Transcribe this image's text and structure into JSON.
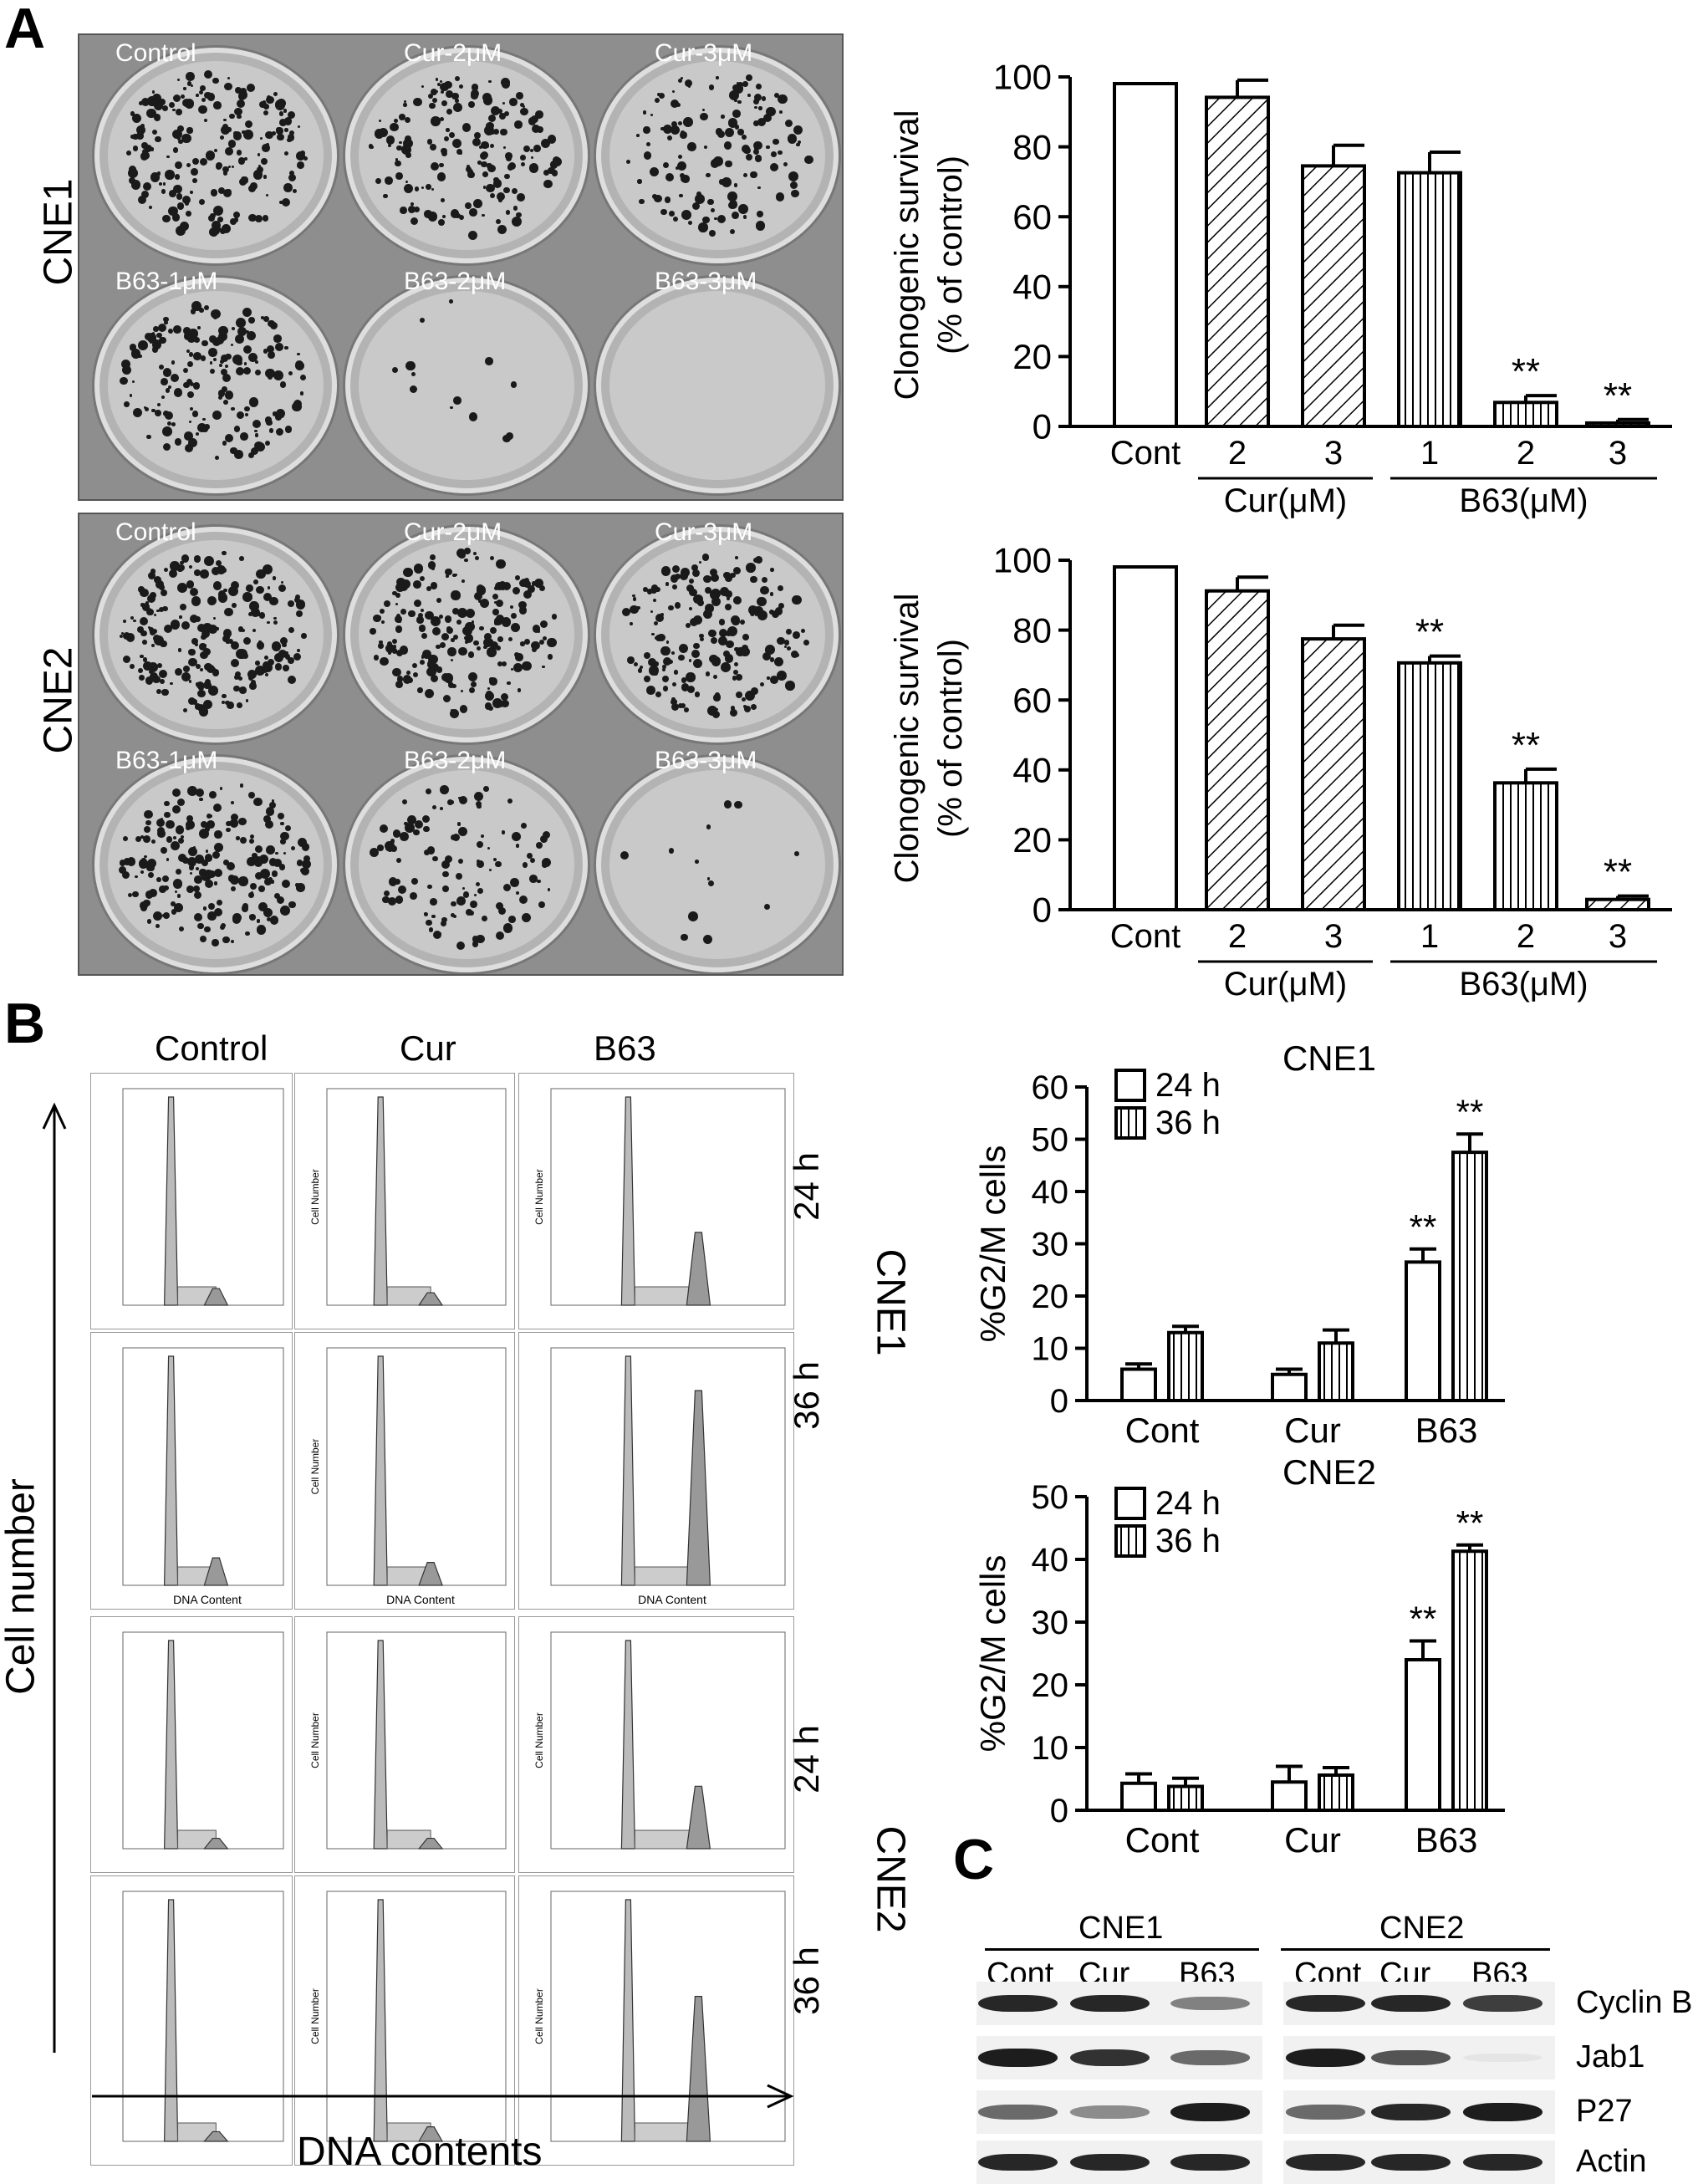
{
  "panel_letters": {
    "a": "A",
    "b": "B",
    "c": "C"
  },
  "panel_a": {
    "plates": [
      {
        "cell_line": "CNE1",
        "wells": [
          "Control",
          "Cur-2μM",
          "Cur-3μM",
          "B63-1μM",
          "B63-2μM",
          "B63-3μM"
        ],
        "colony_density": [
          0.8,
          0.7,
          0.55,
          0.7,
          0.05,
          0.0
        ]
      },
      {
        "cell_line": "CNE2",
        "wells": [
          "Control",
          "Cur-2μM",
          "Cur-3μM",
          "B63-1μM",
          "B63-2μM",
          "B63-3μM"
        ],
        "colony_density": [
          0.85,
          0.8,
          0.75,
          0.8,
          0.45,
          0.05
        ]
      }
    ]
  },
  "panel_b": {
    "column_headers": [
      "Control",
      "Cur",
      "B63"
    ],
    "time_labels": [
      "24 h",
      "36 h"
    ],
    "cell_lines": [
      "CNE1",
      "CNE2"
    ],
    "y_axis_label": "Cell number",
    "x_axis_label": "DNA contents",
    "histogram_inner_x_label": "DNA Content",
    "histogram_inner_y_label": "Cell Number"
  },
  "panel_c": {
    "cell_lines": [
      "CNE1",
      "CNE2"
    ],
    "lanes": [
      "Cont",
      "Cur",
      "B63",
      "Cont",
      "Cur",
      "B63"
    ],
    "proteins": [
      "Cyclin B",
      "Jab1",
      "P27",
      "Actin"
    ],
    "band_intensity": [
      [
        0.9,
        0.9,
        0.5,
        0.9,
        0.9,
        0.8
      ],
      [
        0.95,
        0.85,
        0.6,
        0.95,
        0.7,
        0.05
      ],
      [
        0.6,
        0.45,
        0.95,
        0.6,
        0.9,
        0.95
      ],
      [
        0.9,
        0.9,
        0.9,
        0.9,
        0.9,
        0.9
      ]
    ]
  },
  "chart_data": [
    {
      "type": "bar",
      "panel": "A-top",
      "ylabel_line1": "Clonogenic survival",
      "ylabel_line2": "(% of control)",
      "ylim": [
        0,
        100
      ],
      "yticks": [
        "0",
        "20",
        "40",
        "60",
        "80",
        "100"
      ],
      "categories": [
        "Cont",
        "2",
        "3",
        "1",
        "2",
        "3"
      ],
      "groups": [
        {
          "label": "Cur(μM)",
          "indices": [
            1,
            2
          ]
        },
        {
          "label": "B63(μM)",
          "indices": [
            3,
            5
          ]
        }
      ],
      "values": [
        100,
        96,
        76,
        74,
        7,
        1
      ],
      "errors": [
        0,
        5,
        6,
        6,
        2,
        1
      ],
      "patterns": [
        "none",
        "diag",
        "diag",
        "vert",
        "vert",
        "vert"
      ],
      "annotations": [
        "",
        "",
        "",
        "",
        "**",
        "**"
      ]
    },
    {
      "type": "bar",
      "panel": "A-bottom",
      "ylabel_line1": "Clonogenic survival",
      "ylabel_line2": "(% of control)",
      "ylim": [
        0,
        100
      ],
      "yticks": [
        "0",
        "20",
        "40",
        "60",
        "80",
        "100"
      ],
      "categories": [
        "Cont",
        "2",
        "3",
        "1",
        "2",
        "3"
      ],
      "groups": [
        {
          "label": "Cur(μM)",
          "indices": [
            1,
            2
          ]
        },
        {
          "label": "B63(μM)",
          "indices": [
            3,
            5
          ]
        }
      ],
      "values": [
        100,
        93,
        79,
        72,
        37,
        3
      ],
      "errors": [
        0,
        4,
        4,
        2,
        4,
        1
      ],
      "patterns": [
        "none",
        "diag",
        "diag",
        "vert",
        "vert",
        "diag"
      ],
      "annotations": [
        "",
        "",
        "",
        "**",
        "**",
        "**"
      ]
    },
    {
      "type": "bar",
      "panel": "B-CNE1",
      "title": "CNE1",
      "ylabel": "%G2/M cells",
      "ylim": [
        0,
        60
      ],
      "yticks": [
        "0",
        "10",
        "20",
        "30",
        "40",
        "50",
        "60"
      ],
      "categories": [
        "Cont",
        "Cur",
        "B63"
      ],
      "legend_position": "top-left",
      "series": [
        {
          "name": "24 h",
          "pattern": "none",
          "values": [
            6,
            5,
            26.5
          ],
          "errors": [
            1,
            1,
            2.5
          ],
          "annotations": [
            "",
            "",
            "**"
          ]
        },
        {
          "name": "36 h",
          "pattern": "vert",
          "values": [
            13,
            11,
            47.5
          ],
          "errors": [
            1.2,
            2.5,
            3.5
          ],
          "annotations": [
            "",
            "",
            "**"
          ]
        }
      ]
    },
    {
      "type": "bar",
      "panel": "B-CNE2",
      "title": "CNE2",
      "ylabel": "%G2/M cells",
      "ylim": [
        0,
        50
      ],
      "yticks": [
        "0",
        "10",
        "20",
        "30",
        "40",
        "50"
      ],
      "categories": [
        "Cont",
        "Cur",
        "B63"
      ],
      "legend_position": "top-left",
      "series": [
        {
          "name": "24 h",
          "pattern": "none",
          "values": [
            4.3,
            4.5,
            24
          ],
          "errors": [
            1.5,
            2.5,
            3
          ],
          "annotations": [
            "",
            "",
            "**"
          ]
        },
        {
          "name": "36 h",
          "pattern": "vert",
          "values": [
            3.8,
            5.6,
            41.3
          ],
          "errors": [
            1.3,
            1.2,
            1
          ],
          "annotations": [
            "",
            "",
            "**"
          ]
        }
      ]
    }
  ]
}
